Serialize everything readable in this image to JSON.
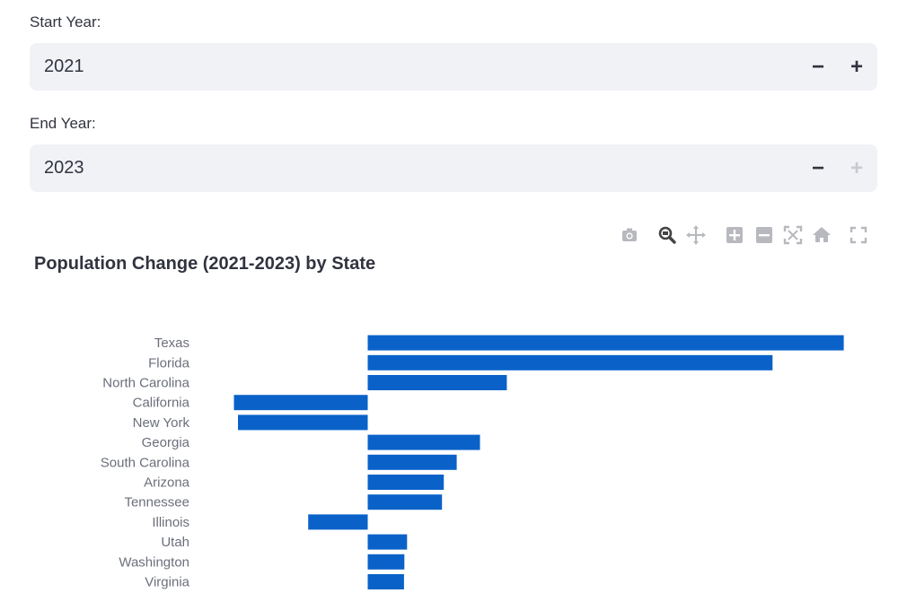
{
  "start_year": {
    "label": "Start Year:",
    "value": "2021",
    "minus_icon": "minus-icon",
    "plus_icon": "plus-icon"
  },
  "end_year": {
    "label": "End Year:",
    "value": "2023",
    "minus_icon": "minus-icon",
    "plus_icon": "plus-icon",
    "plus_disabled": true
  },
  "modebar": {
    "icons": [
      "camera-icon",
      "zoom-icon",
      "pan-icon",
      "zoom-in-icon",
      "zoom-out-icon",
      "autoscale-icon",
      "home-icon",
      "fullscreen-icon"
    ],
    "active": "zoom-icon"
  },
  "chart_data": {
    "type": "bar",
    "orientation": "horizontal",
    "title": "Population Change (2021-2023) by State",
    "categories": [
      "Texas",
      "Florida",
      "North Carolina",
      "California",
      "New York",
      "Georgia",
      "South Carolina",
      "Arizona",
      "Tennessee",
      "Illinois",
      "Utah",
      "Washington",
      "Virginia"
    ],
    "values": [
      1064000,
      905000,
      311000,
      -299000,
      -290000,
      251000,
      199000,
      170000,
      166000,
      -133000,
      88000,
      82000,
      81000
    ],
    "bar_color": "#0a62c9",
    "xlim": [
      -300000,
      1065000
    ],
    "grid": false
  }
}
